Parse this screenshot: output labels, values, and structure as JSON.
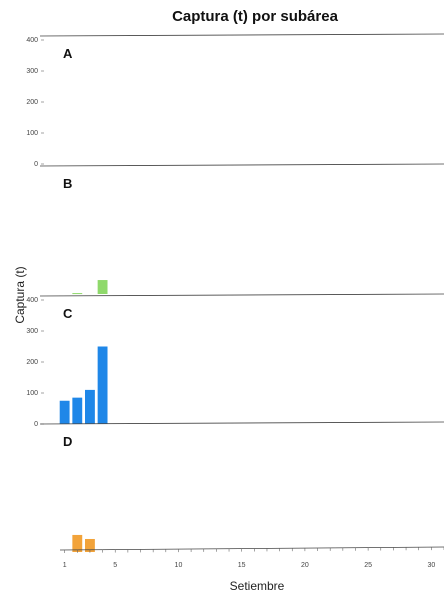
{
  "chart_data": {
    "type": "bar",
    "title": "Captura (t) por subárea",
    "xlabel": "Setiembre",
    "ylabel": "Captura (t)",
    "x_ticks": [
      1,
      5,
      10,
      15,
      20,
      25,
      30
    ],
    "xlim": [
      0,
      31
    ],
    "y_ticks": [
      0,
      100,
      200,
      300,
      400
    ],
    "ylim": [
      0,
      400
    ],
    "grid": false,
    "panels": [
      {
        "label": "A",
        "color": "#2a7fd4",
        "x": [],
        "values": []
      },
      {
        "label": "B",
        "color": "#8fd96b",
        "x": [
          2,
          4
        ],
        "values": [
          3,
          45
        ]
      },
      {
        "label": "C",
        "color": "#1f87e8",
        "x": [
          1,
          2,
          3,
          4
        ],
        "values": [
          75,
          85,
          110,
          250
        ]
      },
      {
        "label": "D",
        "color": "#f2a33a",
        "x": [
          2,
          3
        ],
        "values": [
          55,
          42
        ]
      }
    ]
  }
}
